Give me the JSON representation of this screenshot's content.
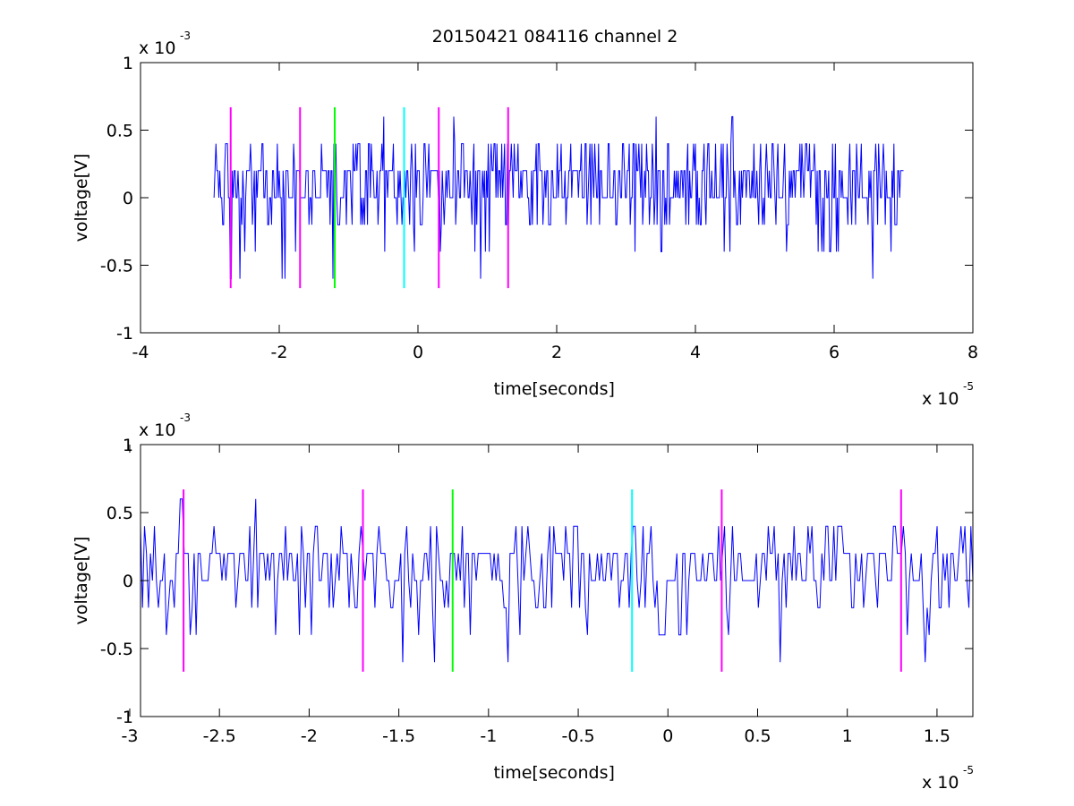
{
  "title": "20150421 084116 channel 2",
  "colors": {
    "signal": "#0000ff",
    "marker_magenta": "#ff00ff",
    "marker_green": "#00ff00",
    "marker_cyan": "#00ffff",
    "axes": "#000000",
    "background": "#ffffff"
  },
  "chart_data": [
    {
      "type": "line",
      "xlabel": "time[seconds]",
      "ylabel": "voltage[V]",
      "xlim": [
        -4e-05,
        8e-05
      ],
      "ylim": [
        -0.001,
        0.001
      ],
      "x_ticks": [
        -4e-05,
        -2e-05,
        0,
        2e-05,
        4e-05,
        6e-05,
        8e-05
      ],
      "x_tick_labels": [
        "-4",
        "-2",
        "0",
        "2",
        "4",
        "6",
        "8"
      ],
      "y_ticks": [
        -0.001,
        -0.0005,
        0,
        0.0005,
        0.001
      ],
      "y_tick_labels": [
        "-1",
        "-0.5",
        "0",
        "0.5",
        "1"
      ],
      "x_multiplier": {
        "base": "x 10",
        "exponent": "-5"
      },
      "y_multiplier": {
        "base": "x 10",
        "exponent": "-3"
      },
      "grid": false,
      "signal": {
        "x_start": -2.94e-05,
        "x_end": 7e-05,
        "quantization_step": 0.0002,
        "y_min": -0.0006,
        "y_max": 0.0006
      },
      "markers": [
        {
          "x": -2.7e-05,
          "color": "magenta",
          "ymin": -0.00067,
          "ymax": 0.00067
        },
        {
          "x": -1.7e-05,
          "color": "magenta",
          "ymin": -0.00067,
          "ymax": 0.00067
        },
        {
          "x": -1.2e-05,
          "color": "green",
          "ymin": -0.00067,
          "ymax": 0.00067
        },
        {
          "x": -2e-06,
          "color": "cyan",
          "ymin": -0.00067,
          "ymax": 0.00067
        },
        {
          "x": 3e-06,
          "color": "magenta",
          "ymin": -0.00067,
          "ymax": 0.00067
        },
        {
          "x": 1.3e-05,
          "color": "magenta",
          "ymin": -0.00067,
          "ymax": 0.00067
        }
      ]
    },
    {
      "type": "line",
      "xlabel": "time[seconds]",
      "ylabel": "voltage[V]",
      "xlim": [
        -2.94e-05,
        1.7e-05
      ],
      "ylim": [
        -0.001,
        0.001
      ],
      "x_ticks": [
        -3e-05,
        -2.5e-05,
        -2e-05,
        -1.5e-05,
        -1e-05,
        -5e-06,
        0,
        5e-06,
        1e-05,
        1.5e-05
      ],
      "x_tick_labels": [
        "-3",
        "-2.5",
        "-2",
        "-1.5",
        "-1",
        "-0.5",
        "0",
        "0.5",
        "1",
        "1.5"
      ],
      "y_ticks": [
        -0.001,
        -0.0005,
        0,
        0.0005,
        0.001
      ],
      "y_tick_labels": [
        "-1",
        "-0.5",
        "0",
        "0.5",
        "1"
      ],
      "x_multiplier": {
        "base": "x 10",
        "exponent": "-5"
      },
      "y_multiplier": {
        "base": "x 10",
        "exponent": "-3"
      },
      "grid": false,
      "signal": {
        "x_start": -2.94e-05,
        "x_end": 1.7e-05,
        "quantization_step": 0.0002,
        "y_min": -0.0006,
        "y_max": 0.0006
      },
      "markers": [
        {
          "x": -2.7e-05,
          "color": "magenta",
          "ymin": -0.00067,
          "ymax": 0.00067
        },
        {
          "x": -1.7e-05,
          "color": "magenta",
          "ymin": -0.00067,
          "ymax": 0.00067
        },
        {
          "x": -1.2e-05,
          "color": "green",
          "ymin": -0.00067,
          "ymax": 0.00067
        },
        {
          "x": -2e-06,
          "color": "cyan",
          "ymin": -0.00067,
          "ymax": 0.00067
        },
        {
          "x": 3e-06,
          "color": "magenta",
          "ymin": -0.00067,
          "ymax": 0.00067
        },
        {
          "x": 1.3e-05,
          "color": "magenta",
          "ymin": -0.00067,
          "ymax": 0.00067
        }
      ]
    }
  ]
}
